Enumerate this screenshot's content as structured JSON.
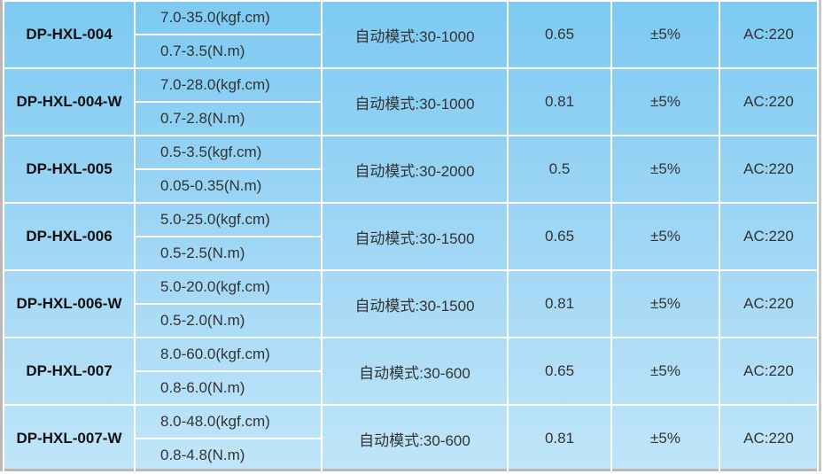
{
  "rows": [
    {
      "model": "DP-HXL-004",
      "torque_kgf": "7.0-35.0(kgf.cm)",
      "torque_nm": "0.7-3.5(N.m)",
      "speed": "自动模式:30-1000",
      "value": "0.65",
      "accuracy": "±5%",
      "power": "AC:220"
    },
    {
      "model": "DP-HXL-004-W",
      "torque_kgf": "7.0-28.0(kgf.cm)",
      "torque_nm": "0.7-2.8(N.m)",
      "speed": "自动模式:30-1000",
      "value": "0.81",
      "accuracy": "±5%",
      "power": "AC:220"
    },
    {
      "model": "DP-HXL-005",
      "torque_kgf": "0.5-3.5(kgf.cm)",
      "torque_nm": "0.05-0.35(N.m)",
      "speed": "自动模式:30-2000",
      "value": "0.5",
      "accuracy": "±5%",
      "power": "AC:220"
    },
    {
      "model": "DP-HXL-006",
      "torque_kgf": "5.0-25.0(kgf.cm)",
      "torque_nm": "0.5-2.5(N.m)",
      "speed": "自动模式:30-1500",
      "value": "0.65",
      "accuracy": "±5%",
      "power": "AC:220"
    },
    {
      "model": "DP-HXL-006-W",
      "torque_kgf": "5.0-20.0(kgf.cm)",
      "torque_nm": "0.5-2.0(N.m)",
      "speed": "自动模式:30-1500",
      "value": "0.81",
      "accuracy": "±5%",
      "power": "AC:220"
    },
    {
      "model": "DP-HXL-007",
      "torque_kgf": "8.0-60.0(kgf.cm)",
      "torque_nm": "0.8-6.0(N.m)",
      "speed": "自动模式:30-600",
      "value": "0.65",
      "accuracy": "±5%",
      "power": "AC:220"
    },
    {
      "model": "DP-HXL-007-W",
      "torque_kgf": "8.0-48.0(kgf.cm)",
      "torque_nm": "0.8-4.8(N.m)",
      "speed": "自动模式:30-600",
      "value": "0.81",
      "accuracy": "±5%",
      "power": "AC:220"
    }
  ],
  "colors": {
    "gradient_top": "#7dcaf3",
    "gradient_bottom": "#c0e5f9",
    "grid": "#ffffff"
  }
}
